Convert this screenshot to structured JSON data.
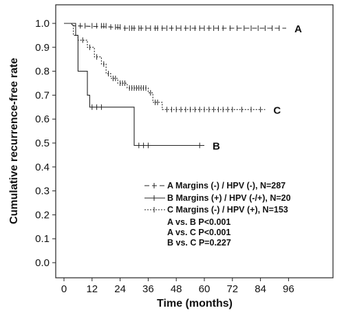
{
  "chart_data": {
    "type": "line",
    "ylabel": "Cumulative recurrence-free rate",
    "xlabel": "Time (months)",
    "xlim": [
      0,
      100
    ],
    "ylim": [
      0,
      1.05
    ],
    "x_ticks": [
      0,
      12,
      24,
      36,
      48,
      60,
      72,
      84,
      96
    ],
    "y_ticks": [
      0.0,
      0.1,
      0.2,
      0.3,
      0.4,
      0.5,
      0.6,
      0.7,
      0.8,
      0.9,
      1.0
    ],
    "grid": false,
    "legend_position": "bottom-right",
    "series": [
      {
        "name": "A Margins (-) / HPV (-), N=287",
        "end_label": "A",
        "line_style": "dashed",
        "points": [
          [
            0,
            1.0
          ],
          [
            3,
            1.0
          ],
          [
            4,
            0.99
          ],
          [
            20,
            0.985
          ],
          [
            26,
            0.98
          ],
          [
            95,
            0.98
          ]
        ],
        "censored": [
          5,
          7,
          9,
          12,
          14,
          16,
          17,
          18,
          20,
          22,
          23,
          24,
          26,
          28,
          29,
          30,
          32,
          33,
          35,
          37,
          39,
          40,
          42,
          44,
          46,
          48,
          50,
          52,
          54,
          56,
          58,
          60,
          62,
          64,
          66,
          68,
          71,
          74,
          77,
          80,
          83,
          86,
          89,
          92
        ]
      },
      {
        "name": "B Margins (+) / HPV (-/+), N=20",
        "end_label": "B",
        "line_style": "solid",
        "points": [
          [
            0,
            1.0
          ],
          [
            5,
            1.0
          ],
          [
            5,
            0.95
          ],
          [
            6,
            0.95
          ],
          [
            6,
            0.8
          ],
          [
            10,
            0.8
          ],
          [
            10,
            0.7
          ],
          [
            11,
            0.7
          ],
          [
            11,
            0.65
          ],
          [
            30,
            0.65
          ],
          [
            30,
            0.49
          ],
          [
            60,
            0.49
          ]
        ],
        "censored": [
          12,
          14,
          16,
          32,
          34,
          36,
          58
        ]
      },
      {
        "name": "C Margins (-) / HPV (+), N=153",
        "end_label": "C",
        "line_style": "dotted",
        "points": [
          [
            0,
            1.0
          ],
          [
            4,
            1.0
          ],
          [
            4,
            0.95
          ],
          [
            6,
            0.95
          ],
          [
            6,
            0.93
          ],
          [
            10,
            0.93
          ],
          [
            10,
            0.9
          ],
          [
            13,
            0.9
          ],
          [
            13,
            0.86
          ],
          [
            16,
            0.86
          ],
          [
            16,
            0.83
          ],
          [
            18,
            0.83
          ],
          [
            18,
            0.79
          ],
          [
            20,
            0.79
          ],
          [
            20,
            0.77
          ],
          [
            23,
            0.77
          ],
          [
            23,
            0.75
          ],
          [
            27,
            0.75
          ],
          [
            27,
            0.73
          ],
          [
            36,
            0.73
          ],
          [
            36,
            0.71
          ],
          [
            38,
            0.71
          ],
          [
            38,
            0.67
          ],
          [
            42,
            0.67
          ],
          [
            42,
            0.64
          ],
          [
            86,
            0.64
          ]
        ],
        "censored": [
          8,
          11,
          14,
          17,
          19,
          21,
          22,
          24,
          25,
          26,
          28,
          29,
          30,
          31,
          32,
          33,
          34,
          35,
          37,
          39,
          40,
          44,
          46,
          48,
          50,
          52,
          54,
          56,
          58,
          60,
          62,
          64,
          66,
          68,
          70,
          72,
          76,
          80,
          84
        ]
      }
    ],
    "annotations": [
      "A vs. B P<0.001",
      "A vs. C P<0.001",
      "B vs. C P=0.227"
    ]
  }
}
